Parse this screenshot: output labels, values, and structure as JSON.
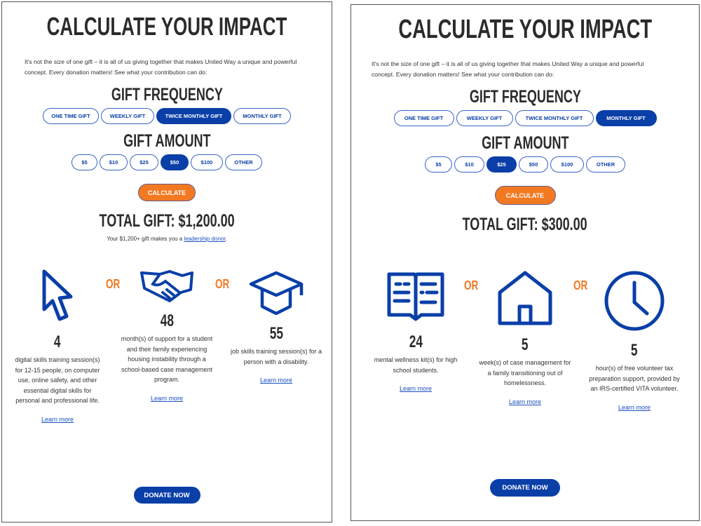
{
  "colors": {
    "primary": "#0a3fa8",
    "accent": "#f27922",
    "text": "#333333"
  },
  "panels": [
    {
      "title": "CALCULATE YOUR IMPACT",
      "intro": "It's not the size of one gift – it is all of us giving together that makes United Way a unique and powerful concept. Every donation matters! See what your contribution can do:",
      "frequency_heading": "GIFT FREQUENCY",
      "frequency_options": [
        "ONE TIME GIFT",
        "WEEKLY GIFT",
        "TWICE MONTHLY GIFT",
        "MONTHLY GIFT"
      ],
      "frequency_selected": 2,
      "amount_heading": "GIFT AMOUNT",
      "amount_options": [
        "$5",
        "$10",
        "$25",
        "$50",
        "$100",
        "OTHER"
      ],
      "amount_selected": 3,
      "calculate_label": "CALCULATE",
      "total": "TOTAL GIFT: $1,200.00",
      "note_prefix": "Your $1,200+ gift makes you a ",
      "note_link": "leadership donor",
      "note_suffix": ".",
      "or_label": "OR",
      "impacts": [
        {
          "icon": "cursor-icon",
          "number": "4",
          "desc": "digital skills training session(s) for 12-15 people, on computer use, online safety, and other essential digital skills for personal and professional life.",
          "link": "Learn more"
        },
        {
          "icon": "handshake-icon",
          "number": "48",
          "desc": "month(s) of support for a student and their family experiencing housing instability through a school-based case management program.",
          "link": "Learn more"
        },
        {
          "icon": "graduation-cap-icon",
          "number": "55",
          "desc": "job skills training session(s) for a person with a disability.",
          "link": "Learn more"
        }
      ],
      "donate_label": "DONATE NOW"
    },
    {
      "title": "CALCULATE YOUR IMPACT",
      "intro": "It's not the size of one gift – it is all of us giving together that makes United Way a unique and powerful concept. Every donation matters! See what your contribution can do:",
      "frequency_heading": "GIFT FREQUENCY",
      "frequency_options": [
        "ONE TIME GIFT",
        "WEEKLY GIFT",
        "TWICE MONTHLY GIFT",
        "MONTHLY GIFT"
      ],
      "frequency_selected": 3,
      "amount_heading": "GIFT AMOUNT",
      "amount_options": [
        "$5",
        "$10",
        "$25",
        "$50",
        "$100",
        "OTHER"
      ],
      "amount_selected": 2,
      "calculate_label": "CALCULATE",
      "total": "TOTAL GIFT: $300.00",
      "or_label": "OR",
      "impacts": [
        {
          "icon": "book-icon",
          "number": "24",
          "desc": "mental wellness kit(s) for high school students.",
          "link": "Learn more"
        },
        {
          "icon": "house-icon",
          "number": "5",
          "desc": "week(s) of case management for a family transitioning out of homelessness.",
          "link": "Learn more"
        },
        {
          "icon": "clock-icon",
          "number": "5",
          "desc": "hour(s) of free volunteer tax preparation support, provided by an IRS-certified VITA volunteer.",
          "link": "Learn more"
        }
      ],
      "donate_label": "DONATE NOW"
    }
  ]
}
